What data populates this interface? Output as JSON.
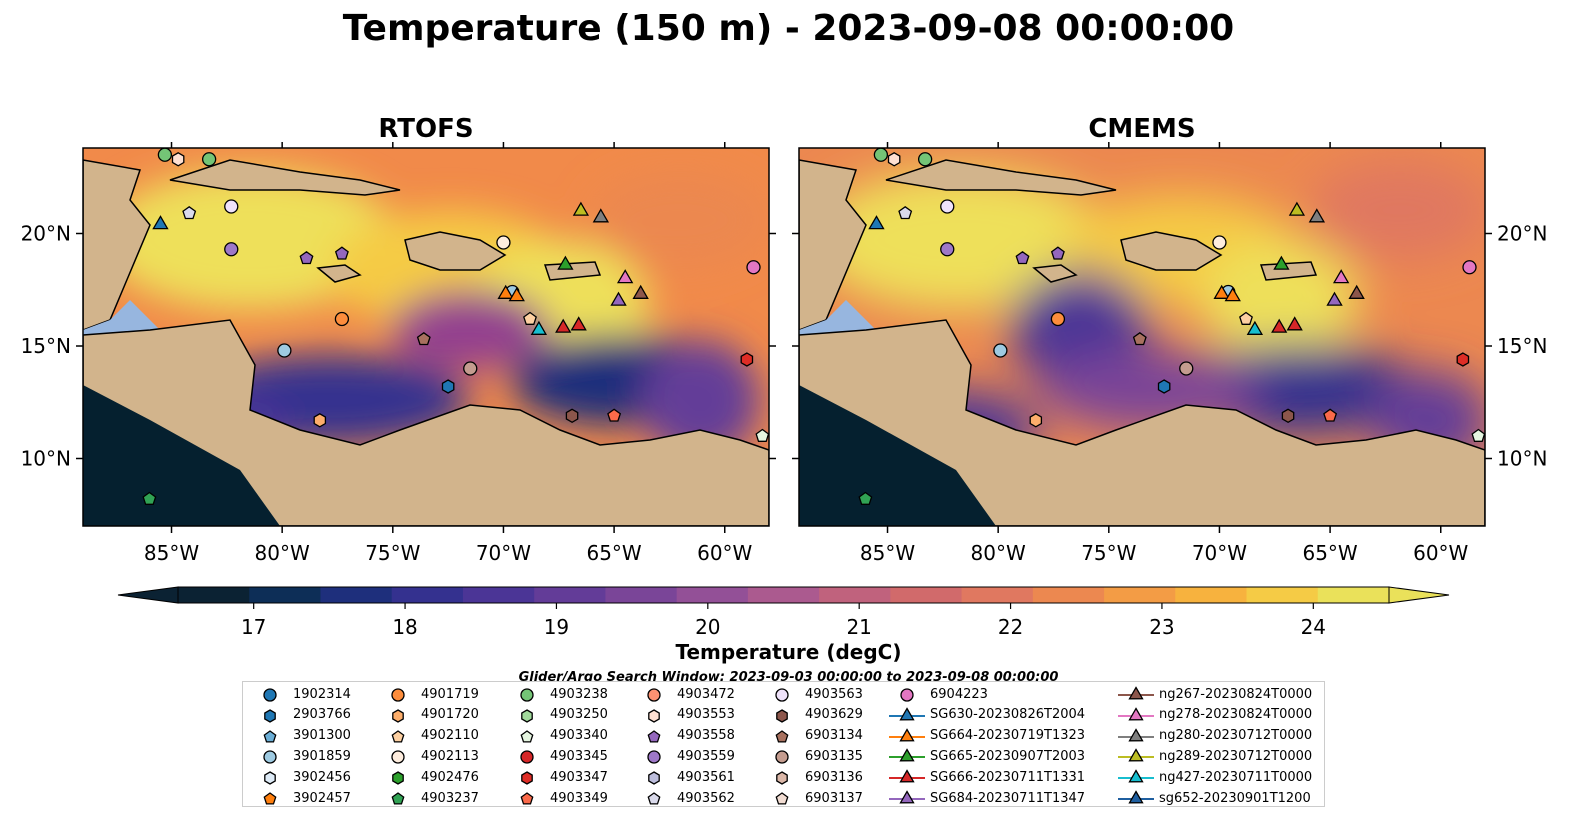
{
  "title": "Temperature (150 m) - 2023-09-08 00:00:00",
  "panels": [
    {
      "title": "RTOFS"
    },
    {
      "title": "CMEMS"
    }
  ],
  "axes": {
    "lon_ticks": [
      "85°W",
      "80°W",
      "75°W",
      "70°W",
      "65°W",
      "60°W"
    ],
    "lon_values": [
      -85,
      -80,
      -75,
      -70,
      -65,
      -60
    ],
    "lat_ticks": [
      "20°N",
      "15°N",
      "10°N"
    ],
    "lat_values": [
      20,
      15,
      10
    ],
    "lon_range": [
      -89,
      -58
    ],
    "lat_range": [
      7,
      23.8
    ]
  },
  "colorbar": {
    "label": "Temperature (degC)",
    "ticks": [
      "17",
      "18",
      "19",
      "20",
      "21",
      "22",
      "23",
      "24"
    ],
    "tick_values": [
      17,
      18,
      19,
      20,
      21,
      22,
      23,
      24
    ],
    "range": [
      16.5,
      24.5
    ],
    "step": 0.5,
    "extend": "both",
    "colors": [
      "#0b2233",
      "#0d2e57",
      "#1e2f7c",
      "#34318f",
      "#4b3596",
      "#633c98",
      "#7a4598",
      "#935097",
      "#ab5a8f",
      "#c0627d",
      "#d16a6b",
      "#e07860",
      "#ec8850",
      "#f39c45",
      "#f7b23e",
      "#f5cb45",
      "#eae15a"
    ]
  },
  "map_colors": {
    "land": "#d2b48c",
    "shelf": "#97b6df",
    "deep": "#05202f"
  },
  "search_window": "Glider/Argo Search Window: 2023-09-03 00:00:00 to 2023-09-08 00:00:00",
  "legend": [
    {
      "label": "1902314",
      "marker": "circle",
      "color": "#1f77b4"
    },
    {
      "label": "2903766",
      "marker": "hexagon",
      "color": "#1f77b4"
    },
    {
      "label": "3901300",
      "marker": "pentagon",
      "color": "#6baed6"
    },
    {
      "label": "3901859",
      "marker": "circle",
      "color": "#9ecae1"
    },
    {
      "label": "3902456",
      "marker": "hexagon",
      "color": "#deebf7"
    },
    {
      "label": "3902457",
      "marker": "pentagon",
      "color": "#ff7f0e"
    },
    {
      "label": "4901719",
      "marker": "circle",
      "color": "#fd8d3c"
    },
    {
      "label": "4901720",
      "marker": "hexagon",
      "color": "#fdae6b"
    },
    {
      "label": "4902110",
      "marker": "pentagon",
      "color": "#fdd0a2"
    },
    {
      "label": "4902113",
      "marker": "circle",
      "color": "#feedde"
    },
    {
      "label": "4902476",
      "marker": "hexagon",
      "color": "#2ca02c"
    },
    {
      "label": "4903237",
      "marker": "pentagon",
      "color": "#31a354"
    },
    {
      "label": "4903238",
      "marker": "circle",
      "color": "#74c476"
    },
    {
      "label": "4903250",
      "marker": "hexagon",
      "color": "#a1d99b"
    },
    {
      "label": "4903340",
      "marker": "pentagon",
      "color": "#e5f5e0"
    },
    {
      "label": "4903345",
      "marker": "circle",
      "color": "#d62728"
    },
    {
      "label": "4903347",
      "marker": "hexagon",
      "color": "#de2d26"
    },
    {
      "label": "4903349",
      "marker": "pentagon",
      "color": "#fb6a4a"
    },
    {
      "label": "4903472",
      "marker": "circle",
      "color": "#fc9272"
    },
    {
      "label": "4903553",
      "marker": "hexagon",
      "color": "#fee0d2"
    },
    {
      "label": "4903558",
      "marker": "pentagon",
      "color": "#9467bd"
    },
    {
      "label": "4903559",
      "marker": "circle",
      "color": "#9e78c8"
    },
    {
      "label": "4903561",
      "marker": "hexagon",
      "color": "#bcbddc"
    },
    {
      "label": "4903562",
      "marker": "pentagon",
      "color": "#dadaeb"
    },
    {
      "label": "4903563",
      "marker": "circle",
      "color": "#efe2fa"
    },
    {
      "label": "4903629",
      "marker": "hexagon",
      "color": "#8c564b"
    },
    {
      "label": "6903134",
      "marker": "pentagon",
      "color": "#a8715f"
    },
    {
      "label": "6903135",
      "marker": "circle",
      "color": "#c49c8f"
    },
    {
      "label": "6903136",
      "marker": "hexagon",
      "color": "#dbb7a8"
    },
    {
      "label": "6903137",
      "marker": "pentagon",
      "color": "#f2ddd3"
    },
    {
      "label": "6904223",
      "marker": "circle",
      "color": "#e377c2"
    },
    {
      "label": "SG630-20230826T2004",
      "marker": "triangle",
      "color": "#1f77b4"
    },
    {
      "label": "SG664-20230719T1323",
      "marker": "triangle",
      "color": "#ff7f0e"
    },
    {
      "label": "SG665-20230907T2003",
      "marker": "triangle",
      "color": "#2ca02c"
    },
    {
      "label": "SG666-20230711T1331",
      "marker": "triangle",
      "color": "#d62728"
    },
    {
      "label": "SG684-20230711T1347",
      "marker": "triangle",
      "color": "#9467bd"
    },
    {
      "label": "ng267-20230824T0000",
      "marker": "triangle",
      "color": "#8c564b"
    },
    {
      "label": "ng278-20230824T0000",
      "marker": "triangle",
      "color": "#e377c2"
    },
    {
      "label": "ng280-20230712T0000",
      "marker": "triangle",
      "color": "#7f7f7f"
    },
    {
      "label": "ng289-20230712T0000",
      "marker": "triangle",
      "color": "#bcbd22"
    },
    {
      "label": "ng427-20230711T0000",
      "marker": "triangle",
      "color": "#17becf"
    },
    {
      "label": "sg652-20230901T1200",
      "marker": "triangle",
      "color": "#1f5fa0"
    }
  ]
}
